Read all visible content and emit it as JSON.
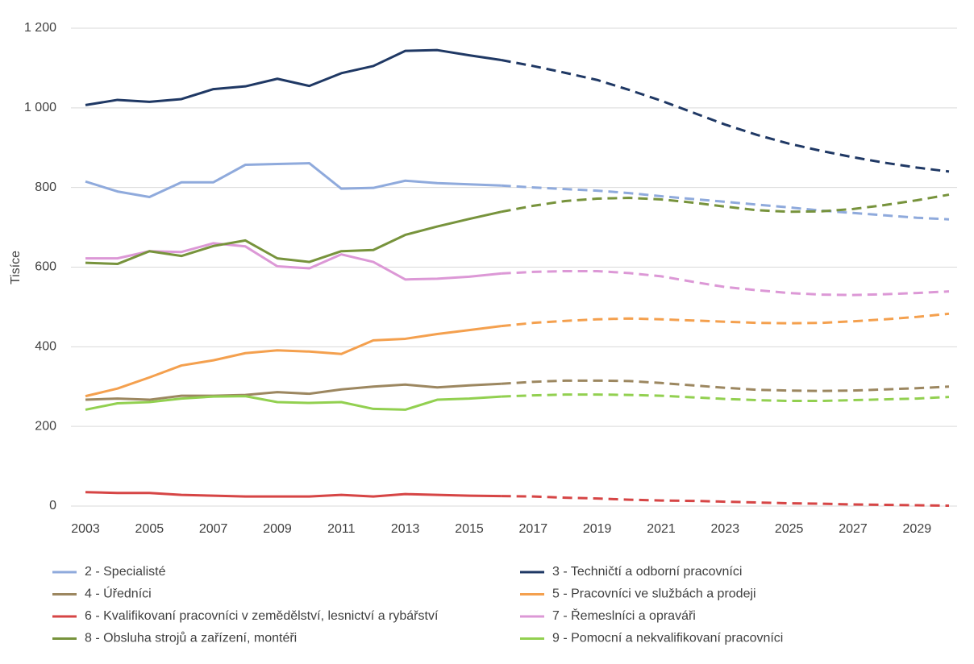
{
  "chart_data": {
    "type": "line",
    "y_label": "Tisíce",
    "x": [
      2003,
      2004,
      2005,
      2006,
      2007,
      2008,
      2009,
      2010,
      2011,
      2012,
      2013,
      2014,
      2015,
      2016,
      2017,
      2018,
      2019,
      2020,
      2021,
      2022,
      2023,
      2024,
      2025,
      2026,
      2027,
      2028,
      2029,
      2030
    ],
    "xlim": [
      2003,
      2030
    ],
    "xticks": [
      2003,
      2005,
      2007,
      2009,
      2011,
      2013,
      2015,
      2017,
      2019,
      2021,
      2023,
      2025,
      2027,
      2029
    ],
    "ylim": [
      0,
      1200
    ],
    "yticks": [
      0,
      200,
      400,
      600,
      800,
      {
        "value": 1000,
        "label": "1 000"
      },
      {
        "value": 1200,
        "label": "1 200"
      }
    ],
    "grid": true,
    "dashed_from_x": 2016,
    "series": [
      {
        "name": "2 - Specialisté",
        "color": "#8faadc",
        "values": [
          815,
          790,
          776,
          813,
          813,
          857,
          859,
          861,
          797,
          799,
          817,
          811,
          808,
          805,
          800,
          796,
          792,
          786,
          778,
          771,
          764,
          757,
          750,
          742,
          736,
          730,
          724,
          720
        ]
      },
      {
        "name": "3 - Techničtí a odborní pracovníci",
        "color": "#1f3864",
        "values": [
          1007,
          1020,
          1015,
          1022,
          1047,
          1054,
          1073,
          1055,
          1087,
          1105,
          1143,
          1145,
          1132,
          1120,
          1105,
          1088,
          1070,
          1045,
          1018,
          988,
          958,
          932,
          910,
          892,
          876,
          862,
          850,
          840
        ]
      },
      {
        "name": "4 - Úředníci",
        "color": "#9c8760",
        "values": [
          267,
          270,
          267,
          277,
          277,
          279,
          286,
          282,
          293,
          300,
          305,
          298,
          303,
          307,
          312,
          315,
          315,
          314,
          309,
          303,
          297,
          292,
          290,
          289,
          290,
          293,
          296,
          300
        ]
      },
      {
        "name": "5 - Pracovníci ve službách a prodeji",
        "color": "#f4a04e",
        "values": [
          276,
          295,
          323,
          353,
          366,
          384,
          391,
          388,
          382,
          416,
          420,
          432,
          442,
          452,
          460,
          465,
          469,
          471,
          469,
          466,
          463,
          460,
          459,
          460,
          464,
          469,
          475,
          483
        ]
      },
      {
        "name": "6 - Kvalifikovaní pracovníci v zemědělství, lesnictví a rybářství",
        "color": "#d64545",
        "values": [
          35,
          33,
          33,
          28,
          26,
          24,
          24,
          24,
          28,
          24,
          30,
          28,
          26,
          25,
          24,
          21,
          19,
          16,
          14,
          13,
          11,
          9,
          7,
          6,
          4,
          3,
          2,
          1
        ]
      },
      {
        "name": "7 - Řemeslníci a opraváři",
        "color": "#dc98d6",
        "values": [
          622,
          622,
          640,
          638,
          660,
          652,
          602,
          597,
          632,
          613,
          569,
          571,
          576,
          584,
          588,
          590,
          590,
          585,
          577,
          563,
          550,
          542,
          535,
          531,
          530,
          532,
          535,
          539
        ]
      },
      {
        "name": "8 - Obsluha strojů a zařízení, montéři",
        "color": "#77933c",
        "values": [
          611,
          608,
          640,
          628,
          653,
          667,
          622,
          613,
          640,
          643,
          681,
          702,
          721,
          739,
          754,
          766,
          772,
          774,
          770,
          762,
          752,
          743,
          739,
          740,
          746,
          756,
          768,
          782
        ]
      },
      {
        "name": "9 - Pomocní a nekvalifikovaní pracovníci",
        "color": "#92d050",
        "values": [
          242,
          258,
          261,
          270,
          275,
          276,
          261,
          259,
          261,
          244,
          242,
          267,
          270,
          275,
          278,
          280,
          280,
          279,
          277,
          273,
          269,
          266,
          264,
          264,
          266,
          268,
          270,
          274
        ]
      }
    ]
  }
}
